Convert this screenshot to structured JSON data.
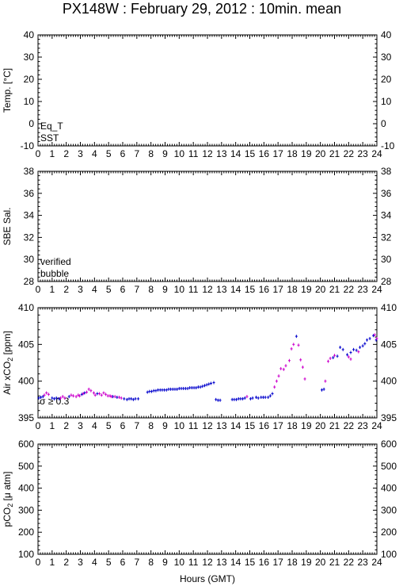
{
  "title": "PX148W : February 29, 2012 : 10min. mean",
  "xlabel": "Hours (GMT)",
  "x_ticks": [
    "0",
    "1",
    "2",
    "3",
    "4",
    "5",
    "6",
    "7",
    "8",
    "9",
    "10",
    "11",
    "12",
    "13",
    "14",
    "15",
    "16",
    "17",
    "18",
    "19",
    "20",
    "21",
    "22",
    "23",
    "24"
  ],
  "colors": {
    "red": "#cc0000",
    "blue": "#0000cc",
    "magenta": "#cc00cc"
  },
  "chart_data": [
    {
      "type": "scatter",
      "ylabel": "Temp. [°C]",
      "xlim": [
        0,
        24
      ],
      "ylim": [
        -10,
        40
      ],
      "y_ticks": [
        "-10",
        "0",
        "10",
        "20",
        "30",
        "40"
      ],
      "legend": [
        {
          "label": "Eq_T",
          "color": "#cc0000"
        },
        {
          "label": "SST",
          "color": "#0000cc"
        }
      ],
      "series": []
    },
    {
      "type": "scatter",
      "ylabel": "SBE Sal.",
      "xlim": [
        0,
        24
      ],
      "ylim": [
        28,
        38
      ],
      "y_ticks": [
        "28",
        "30",
        "32",
        "34",
        "36",
        "38"
      ],
      "legend": [
        {
          "label": "verified",
          "color": "#0000cc"
        },
        {
          "label": "bubble",
          "color": "#cc00cc"
        }
      ],
      "series": []
    },
    {
      "type": "scatter",
      "ylabel_pre": "Air xCO",
      "ylabel_sub": "2",
      "ylabel_post": " [ppm]",
      "xlim": [
        0,
        24
      ],
      "ylim": [
        395,
        410
      ],
      "y_ticks": [
        "395",
        "400",
        "405",
        "410"
      ],
      "annotation": "σ ≥ 0.3",
      "series": [
        {
          "color": "#0000cc",
          "points": [
            [
              0.05,
              397.7
            ],
            [
              0.2,
              397.8
            ],
            [
              0.35,
              397.9
            ],
            [
              1.0,
              397.7
            ],
            [
              1.15,
              397.6
            ],
            [
              1.3,
              397.7
            ],
            [
              1.5,
              397.6
            ],
            [
              2.2,
              397.9
            ],
            [
              3.1,
              398.2
            ],
            [
              3.3,
              398.4
            ],
            [
              4.2,
              398.3
            ],
            [
              5.3,
              397.9
            ],
            [
              5.6,
              397.8
            ],
            [
              6.1,
              397.6
            ],
            [
              6.3,
              397.5
            ],
            [
              6.45,
              397.6
            ],
            [
              6.6,
              397.6
            ],
            [
              6.75,
              397.5
            ],
            [
              6.9,
              397.6
            ],
            [
              7.1,
              397.6
            ],
            [
              7.75,
              398.5
            ],
            [
              7.9,
              398.6
            ],
            [
              8.05,
              398.6
            ],
            [
              8.2,
              398.7
            ],
            [
              8.35,
              398.7
            ],
            [
              8.5,
              398.8
            ],
            [
              8.65,
              398.8
            ],
            [
              8.8,
              398.8
            ],
            [
              8.95,
              398.8
            ],
            [
              9.1,
              398.8
            ],
            [
              9.25,
              398.9
            ],
            [
              9.4,
              398.9
            ],
            [
              9.55,
              398.9
            ],
            [
              9.7,
              398.9
            ],
            [
              9.85,
              398.9
            ],
            [
              10.0,
              399.0
            ],
            [
              10.15,
              399.0
            ],
            [
              10.3,
              399.0
            ],
            [
              10.45,
              399.0
            ],
            [
              10.6,
              399.0
            ],
            [
              10.75,
              399.1
            ],
            [
              10.9,
              399.1
            ],
            [
              11.05,
              399.1
            ],
            [
              11.2,
              399.1
            ],
            [
              11.35,
              399.2
            ],
            [
              11.5,
              399.2
            ],
            [
              11.65,
              399.3
            ],
            [
              11.8,
              399.4
            ],
            [
              11.95,
              399.5
            ],
            [
              12.1,
              399.6
            ],
            [
              12.25,
              399.7
            ],
            [
              12.45,
              399.8
            ],
            [
              12.6,
              397.5
            ],
            [
              12.75,
              397.4
            ],
            [
              12.9,
              397.4
            ],
            [
              13.75,
              397.5
            ],
            [
              13.9,
              397.5
            ],
            [
              14.05,
              397.5
            ],
            [
              14.2,
              397.6
            ],
            [
              14.35,
              397.6
            ],
            [
              14.5,
              397.6
            ],
            [
              14.65,
              397.7
            ],
            [
              15.05,
              397.6
            ],
            [
              15.2,
              397.7
            ],
            [
              15.45,
              397.8
            ],
            [
              15.6,
              397.7
            ],
            [
              15.8,
              397.8
            ],
            [
              15.95,
              397.8
            ],
            [
              16.1,
              397.8
            ],
            [
              16.3,
              397.8
            ],
            [
              16.45,
              398.0
            ],
            [
              16.6,
              398.3
            ],
            [
              18.3,
              406.1
            ],
            [
              20.1,
              398.8
            ],
            [
              20.25,
              398.9
            ],
            [
              20.9,
              403.2
            ],
            [
              21.2,
              403.4
            ],
            [
              21.4,
              404.6
            ],
            [
              21.6,
              404.3
            ],
            [
              21.9,
              403.6
            ],
            [
              22.15,
              403.9
            ],
            [
              22.35,
              404.3
            ],
            [
              22.55,
              404.2
            ],
            [
              22.8,
              404.6
            ],
            [
              23.0,
              404.8
            ],
            [
              23.15,
              405.1
            ],
            [
              23.3,
              405.6
            ],
            [
              23.5,
              405.8
            ],
            [
              23.75,
              406.2
            ],
            [
              23.95,
              405.6
            ]
          ]
        },
        {
          "color": "#cc00cc",
          "points": [
            [
              0.45,
              398.1
            ],
            [
              0.6,
              398.4
            ],
            [
              0.75,
              398.2
            ],
            [
              1.6,
              397.7
            ],
            [
              1.75,
              397.9
            ],
            [
              1.9,
              397.7
            ],
            [
              2.35,
              398.1
            ],
            [
              2.5,
              398.0
            ],
            [
              2.7,
              397.9
            ],
            [
              2.85,
              398.1
            ],
            [
              2.95,
              398.0
            ],
            [
              3.2,
              398.3
            ],
            [
              3.45,
              398.5
            ],
            [
              3.6,
              398.9
            ],
            [
              3.75,
              398.7
            ],
            [
              3.95,
              398.4
            ],
            [
              4.05,
              398.1
            ],
            [
              4.35,
              398.3
            ],
            [
              4.5,
              398.1
            ],
            [
              4.65,
              398.4
            ],
            [
              4.8,
              398.2
            ],
            [
              4.95,
              398.0
            ],
            [
              5.1,
              398.0
            ],
            [
              5.2,
              397.9
            ],
            [
              5.45,
              397.9
            ],
            [
              5.75,
              397.8
            ],
            [
              5.9,
              397.7
            ],
            [
              14.8,
              397.9
            ],
            [
              16.75,
              399.2
            ],
            [
              16.9,
              400.0
            ],
            [
              17.05,
              400.7
            ],
            [
              17.2,
              401.7
            ],
            [
              17.4,
              401.6
            ],
            [
              17.55,
              402.1
            ],
            [
              17.8,
              402.8
            ],
            [
              17.95,
              404.4
            ],
            [
              18.1,
              405.0
            ],
            [
              18.45,
              404.9
            ],
            [
              18.6,
              402.9
            ],
            [
              18.75,
              401.9
            ],
            [
              18.9,
              400.3
            ],
            [
              20.35,
              400.0
            ],
            [
              20.55,
              402.7
            ],
            [
              20.7,
              403.1
            ],
            [
              21.0,
              403.5
            ],
            [
              22.0,
              403.3
            ],
            [
              22.15,
              403.0
            ],
            [
              22.7,
              404.0
            ],
            [
              23.85,
              406.3
            ],
            [
              24.0,
              405.8
            ]
          ]
        }
      ]
    },
    {
      "type": "scatter",
      "ylabel_pre": "pCO",
      "ylabel_sub": "2",
      "ylabel_post": " [μ atm]",
      "xlim": [
        0,
        24
      ],
      "ylim": [
        100,
        600
      ],
      "y_ticks": [
        "100",
        "200",
        "300",
        "400",
        "500",
        "600"
      ],
      "series": []
    }
  ]
}
